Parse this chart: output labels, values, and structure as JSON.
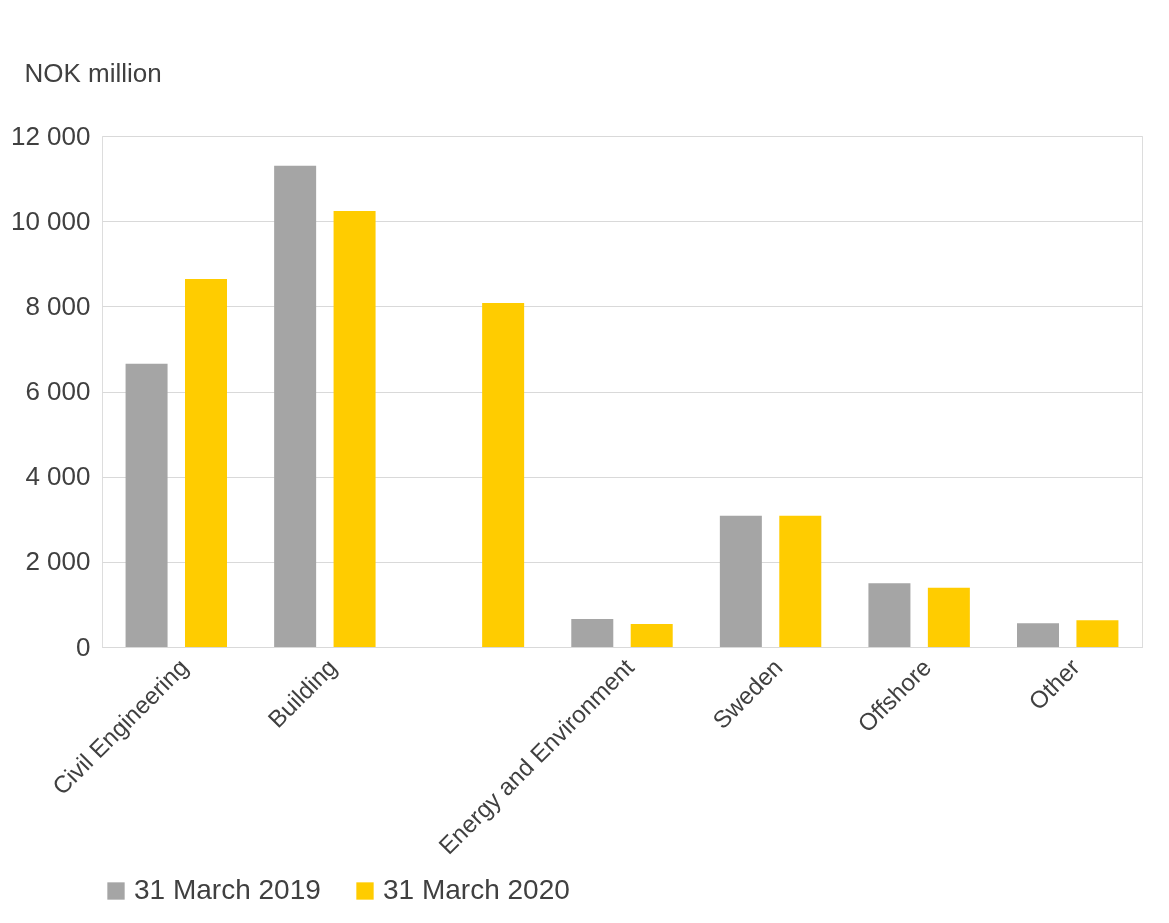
{
  "chart_data": {
    "type": "bar",
    "ylabel": "NOK million",
    "categories": [
      "Civil Engineering",
      "Building",
      null,
      "Energy and Environment",
      "Sweden",
      "Offshore",
      "Other"
    ],
    "series": [
      {
        "name": "31 March 2019",
        "color": "#a5a5a5",
        "values": [
          6650,
          11300,
          null,
          660,
          3080,
          1500,
          560
        ]
      },
      {
        "name": "31 March 2020",
        "color": "#ffcc00",
        "values": [
          8640,
          10240,
          8080,
          540,
          3080,
          1390,
          630
        ]
      }
    ],
    "ylim": [
      0,
      12000
    ],
    "yticks": [
      {
        "value": 0,
        "label": "0"
      },
      {
        "value": 2000,
        "label": "2 000"
      },
      {
        "value": 4000,
        "label": "4 000"
      },
      {
        "value": 6000,
        "label": "6 000"
      },
      {
        "value": 8000,
        "label": "8 000"
      },
      {
        "value": 10000,
        "label": "10 000"
      },
      {
        "value": 12000,
        "label": "12 000"
      }
    ],
    "grid": "y",
    "legend": "bottom"
  }
}
